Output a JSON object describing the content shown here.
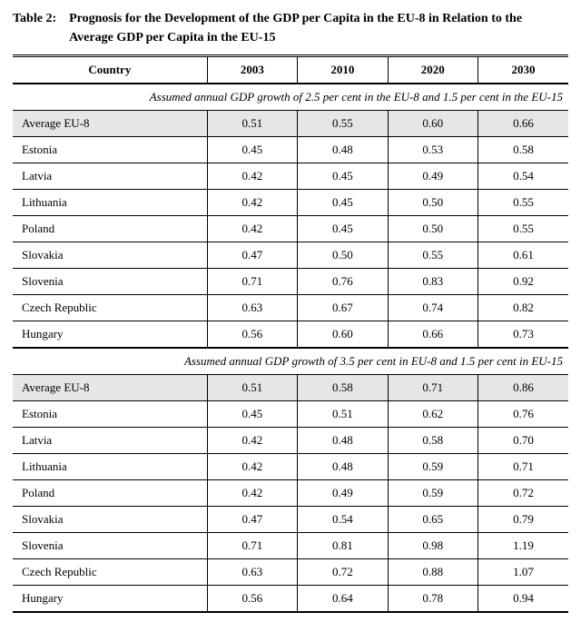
{
  "title_prefix": "Table 2:    ",
  "title_text": "Prognosis for the Development of the GDP per Capita in the EU-8 in Relation to the Average GDP per Capita in the EU-15",
  "columns": [
    "Country",
    "2003",
    "2010",
    "2020",
    "2030"
  ],
  "column_widths": [
    "35%",
    "16.25%",
    "16.25%",
    "16.25%",
    "16.25%"
  ],
  "header_text_align": "center",
  "data_text_align": "center",
  "first_col_text_align": "left",
  "avg_row_bg": "#e6e6e6",
  "background_color": "#ffffff",
  "text_color": "#000000",
  "border_color": "#000000",
  "font_family": "Times New Roman",
  "font_size_pt": 10,
  "title_fontsize_pt": 11,
  "sections": [
    {
      "caption": "Assumed annual GDP growth of 2.5 per cent in the EU-8 and 1.5 per cent in the EU-15",
      "caption_align": "right",
      "rows": [
        {
          "label": "Average EU-8",
          "vals": [
            "0.51",
            "0.55",
            "0.60",
            "0.66"
          ],
          "avg": true
        },
        {
          "label": "Estonia",
          "vals": [
            "0.45",
            "0.48",
            "0.53",
            "0.58"
          ]
        },
        {
          "label": "Latvia",
          "vals": [
            "0.42",
            "0.45",
            "0.49",
            "0.54"
          ]
        },
        {
          "label": "Lithuania",
          "vals": [
            "0.42",
            "0.45",
            "0.50",
            "0.55"
          ]
        },
        {
          "label": "Poland",
          "vals": [
            "0.42",
            "0.45",
            "0.50",
            "0.55"
          ]
        },
        {
          "label": "Slovakia",
          "vals": [
            "0.47",
            "0.50",
            "0.55",
            "0.61"
          ]
        },
        {
          "label": "Slovenia",
          "vals": [
            "0.71",
            "0.76",
            "0.83",
            "0.92"
          ]
        },
        {
          "label": "Czech Republic",
          "vals": [
            "0.63",
            "0.67",
            "0.74",
            "0.82"
          ]
        },
        {
          "label": "Hungary",
          "vals": [
            "0.56",
            "0.60",
            "0.66",
            "0.73"
          ]
        }
      ]
    },
    {
      "caption": "Assumed annual GDP growth of 3.5 per cent in EU-8 and 1.5 per cent in EU-15",
      "caption_align": "right",
      "rows": [
        {
          "label": "Average EU-8",
          "vals": [
            "0.51",
            "0.58",
            "0.71",
            "0.86"
          ],
          "avg": true
        },
        {
          "label": "Estonia",
          "vals": [
            "0.45",
            "0.51",
            "0.62",
            "0.76"
          ]
        },
        {
          "label": "Latvia",
          "vals": [
            "0.42",
            "0.48",
            "0.58",
            "0.70"
          ]
        },
        {
          "label": "Lithuania",
          "vals": [
            "0.42",
            "0.48",
            "0.59",
            "0.71"
          ]
        },
        {
          "label": "Poland",
          "vals": [
            "0.42",
            "0.49",
            "0.59",
            "0.72"
          ]
        },
        {
          "label": "Slovakia",
          "vals": [
            "0.47",
            "0.54",
            "0.65",
            "0.79"
          ]
        },
        {
          "label": "Slovenia",
          "vals": [
            "0.71",
            "0.81",
            "0.98",
            "1.19"
          ]
        },
        {
          "label": "Czech Republic",
          "vals": [
            "0.63",
            "0.72",
            "0.88",
            "1.07"
          ]
        },
        {
          "label": "Hungary",
          "vals": [
            "0.56",
            "0.64",
            "0.78",
            "0.94"
          ]
        }
      ]
    }
  ]
}
